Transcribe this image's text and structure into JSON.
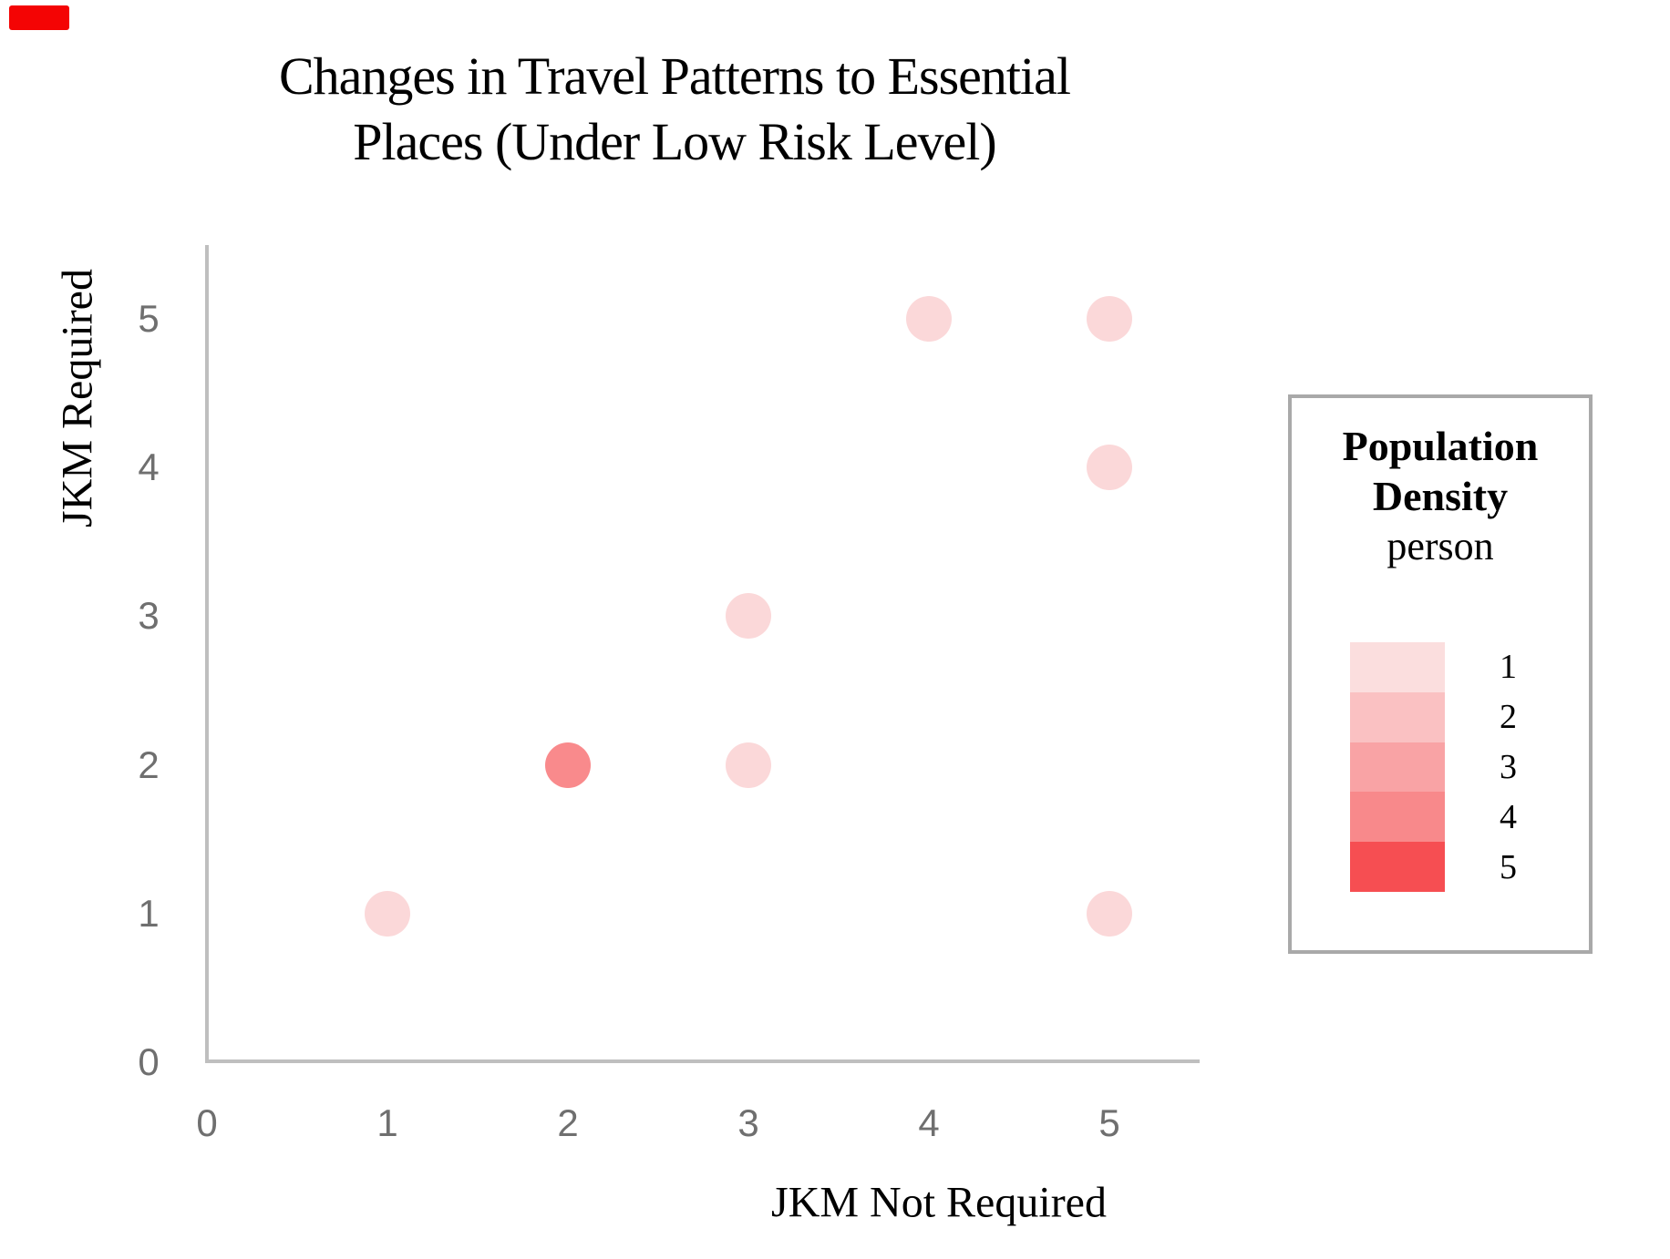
{
  "marker": {
    "color": "#f40404"
  },
  "title": {
    "line1": "Changes in Travel Patterns to Essential",
    "line2": "Places (Under Low Risk Level)"
  },
  "axes": {
    "x": {
      "label": "JKM Not Required",
      "ticks": [
        "0",
        "1",
        "2",
        "3",
        "4",
        "5"
      ]
    },
    "y": {
      "label": "JKM Required",
      "ticks": [
        "0",
        "1",
        "2",
        "3",
        "4",
        "5"
      ]
    }
  },
  "legend": {
    "title_line1": "Population",
    "title_line2": "Density",
    "subtitle": "person",
    "border_color": "#a9a9a9",
    "entries": [
      {
        "label": "1",
        "color": "#fbdede"
      },
      {
        "label": "2",
        "color": "#fac1c2"
      },
      {
        "label": "3",
        "color": "#f9a3a5"
      },
      {
        "label": "4",
        "color": "#f8898b"
      },
      {
        "label": "5",
        "color": "#f64e52"
      }
    ]
  },
  "chart_data": {
    "type": "scatter",
    "title": "Changes in Travel Patterns to Essential Places (Under Low Risk Level)",
    "xlabel": "JKM Not Required",
    "ylabel": "JKM Required",
    "xlim": [
      0,
      5.5
    ],
    "ylim": [
      0,
      5.5
    ],
    "x_ticks": [
      0,
      1,
      2,
      3,
      4,
      5
    ],
    "y_ticks": [
      0,
      1,
      2,
      3,
      4,
      5
    ],
    "grid": false,
    "legend_title": "Population Density (person)",
    "density_colors": {
      "1": "#fbd8d9",
      "2": "#fac1c2",
      "3": "#f9a3a5",
      "4": "#f98a8c",
      "5": "#f64e52"
    },
    "points": [
      {
        "x": 1,
        "y": 1,
        "density": 1
      },
      {
        "x": 2,
        "y": 2,
        "density": 4
      },
      {
        "x": 3,
        "y": 2,
        "density": 1
      },
      {
        "x": 3,
        "y": 3,
        "density": 1
      },
      {
        "x": 4,
        "y": 5,
        "density": 1
      },
      {
        "x": 5,
        "y": 5,
        "density": 1
      },
      {
        "x": 5,
        "y": 4,
        "density": 1
      },
      {
        "x": 5,
        "y": 1,
        "density": 1
      }
    ]
  }
}
